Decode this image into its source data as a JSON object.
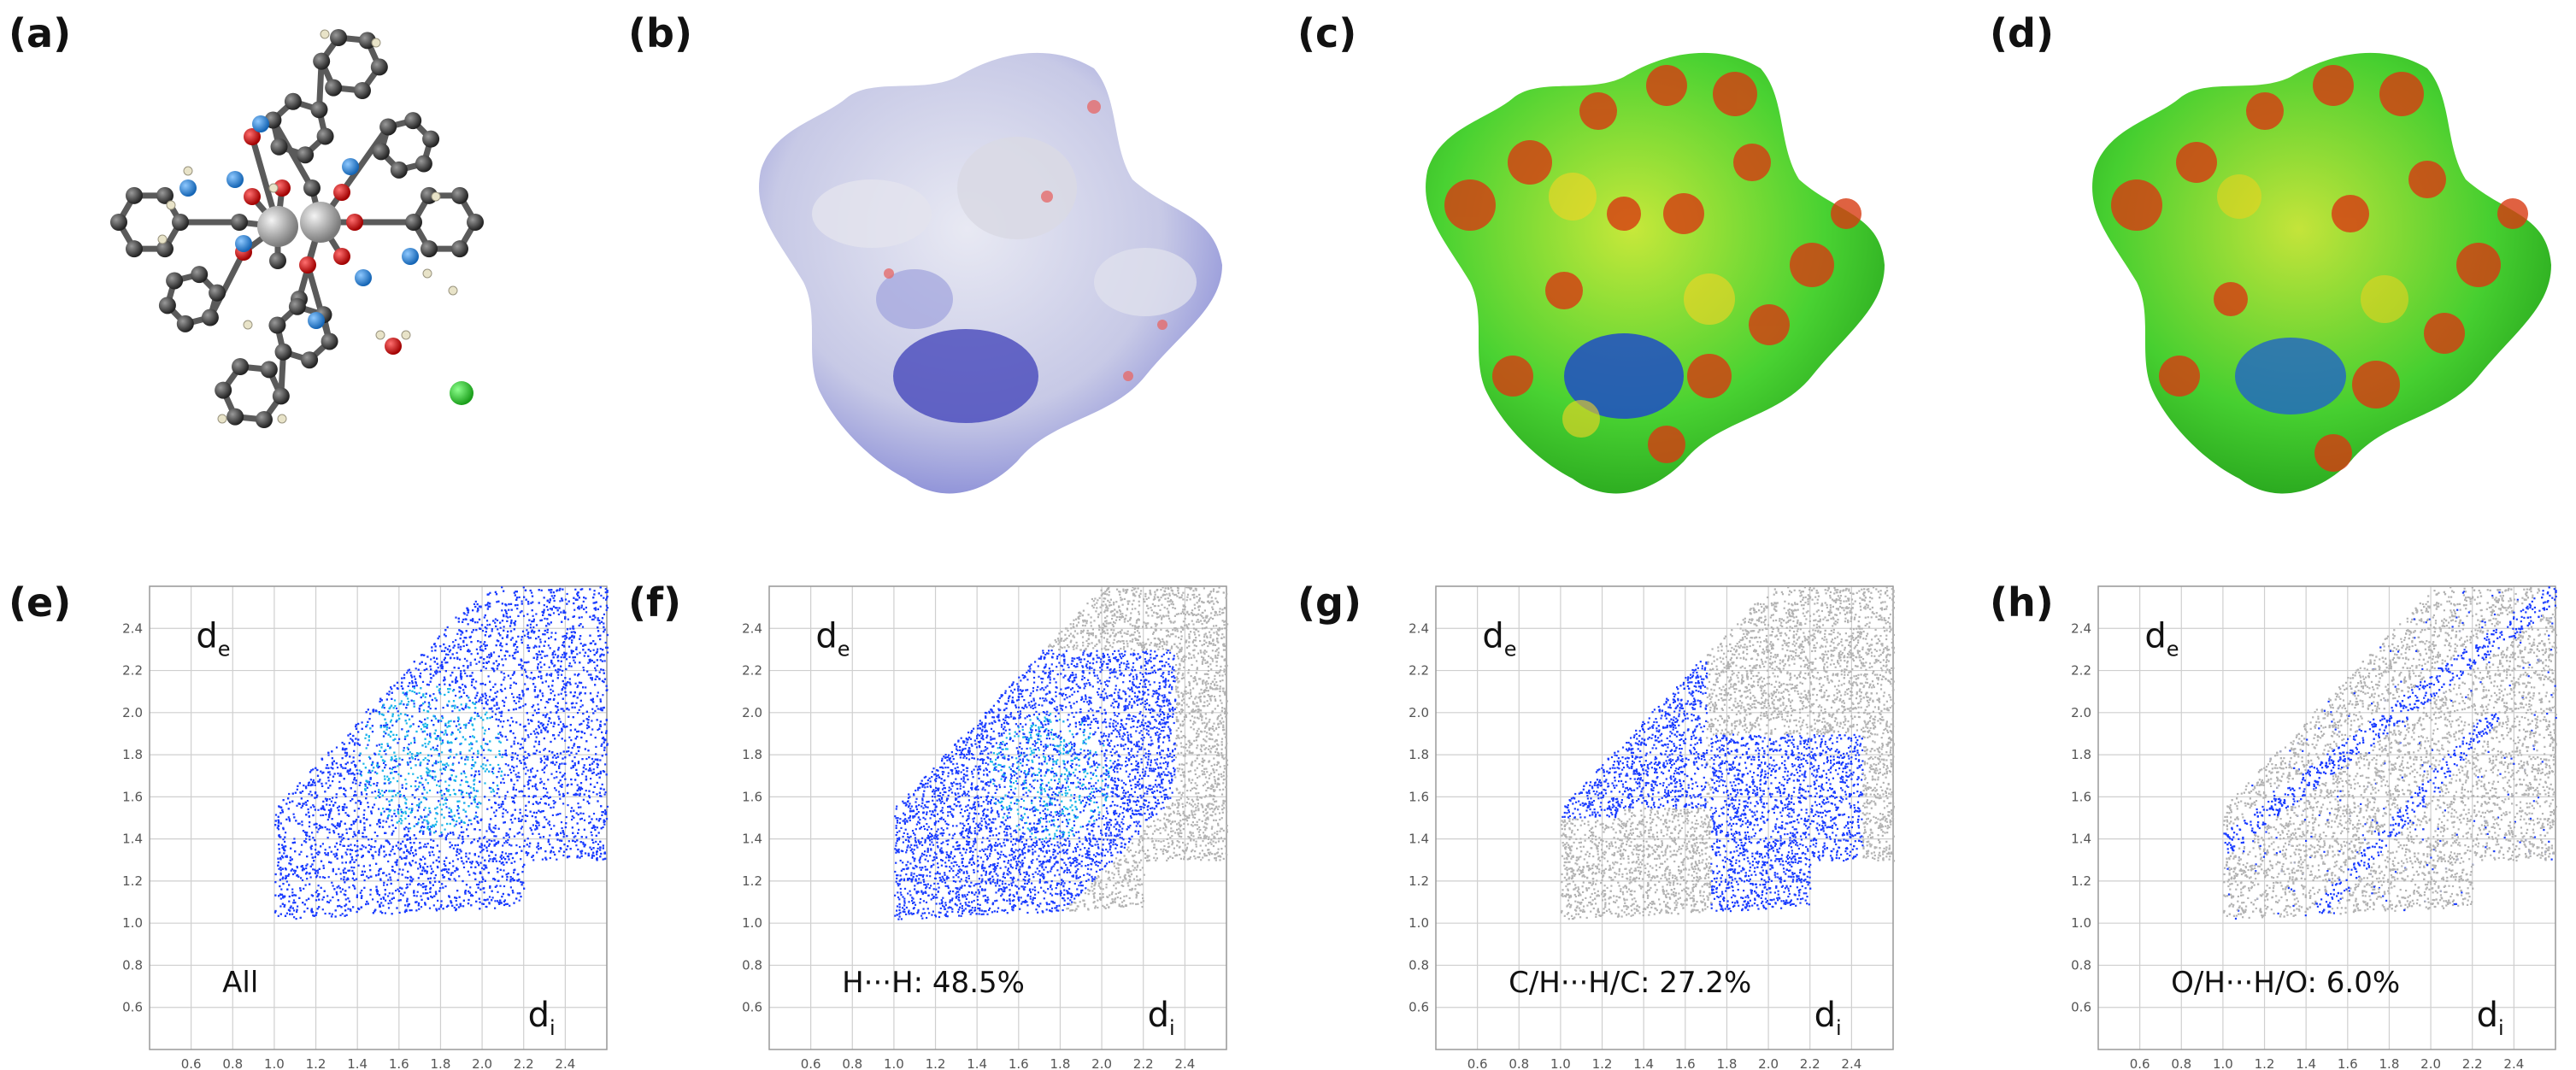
{
  "panel_labels": [
    "(a)",
    "(b)",
    "(c)",
    "(d)",
    "(e)",
    "(f)",
    "(g)",
    "(h)"
  ],
  "colors": {
    "blue_points": "#1a3cff",
    "cyan_points": "#19b7e8",
    "gray_points": "#b3b3b3",
    "grid": "#cfcfcf",
    "surface_blue": "#6f74d6",
    "surface_red": "#d73b12",
    "surface_green": "#2fd12a",
    "chloride": "#2ccc2c"
  },
  "chart_data": [
    {
      "panel": "(e)",
      "type": "scatter",
      "title": "All",
      "xlabel": "di",
      "ylabel": "de",
      "xlim": [
        0.4,
        2.6
      ],
      "ylim": [
        0.4,
        2.6
      ],
      "xticks": [
        "0.6",
        "0.8",
        "1.0",
        "1.2",
        "1.4",
        "1.6",
        "1.8",
        "2.0",
        "2.2",
        "2.4"
      ],
      "yticks": [
        "0.6",
        "0.8",
        "1.0",
        "1.2",
        "1.4",
        "1.6",
        "1.8",
        "2.0",
        "2.2",
        "2.4"
      ],
      "percent": ""
    },
    {
      "panel": "(f)",
      "type": "scatter",
      "title": "H···H",
      "xlabel": "di",
      "ylabel": "de",
      "xlim": [
        0.4,
        2.6
      ],
      "ylim": [
        0.4,
        2.6
      ],
      "xticks": [
        "0.6",
        "0.8",
        "1.0",
        "1.2",
        "1.4",
        "1.6",
        "1.8",
        "2.0",
        "2.2",
        "2.4"
      ],
      "yticks": [
        "0.6",
        "0.8",
        "1.0",
        "1.2",
        "1.4",
        "1.6",
        "1.8",
        "2.0",
        "2.2",
        "2.4"
      ],
      "percent": "48.5%"
    },
    {
      "panel": "(g)",
      "type": "scatter",
      "title": "C/H···H/C",
      "xlabel": "di",
      "ylabel": "de",
      "xlim": [
        0.4,
        2.6
      ],
      "ylim": [
        0.4,
        2.6
      ],
      "xticks": [
        "0.6",
        "0.8",
        "1.0",
        "1.2",
        "1.4",
        "1.6",
        "1.8",
        "2.0",
        "2.2",
        "2.4"
      ],
      "yticks": [
        "0.6",
        "0.8",
        "1.0",
        "1.2",
        "1.4",
        "1.6",
        "1.8",
        "2.0",
        "2.2",
        "2.4"
      ],
      "percent": "27.2%"
    },
    {
      "panel": "(h)",
      "type": "scatter",
      "title": "O/H···H/O",
      "xlabel": "di",
      "ylabel": "de",
      "xlim": [
        0.4,
        2.6
      ],
      "ylim": [
        0.4,
        2.6
      ],
      "xticks": [
        "0.6",
        "0.8",
        "1.0",
        "1.2",
        "1.4",
        "1.6",
        "1.8",
        "2.0",
        "2.2",
        "2.4"
      ],
      "yticks": [
        "0.6",
        "0.8",
        "1.0",
        "1.2",
        "1.4",
        "1.6",
        "1.8",
        "2.0",
        "2.2",
        "2.4"
      ],
      "percent": "6.0%"
    }
  ]
}
